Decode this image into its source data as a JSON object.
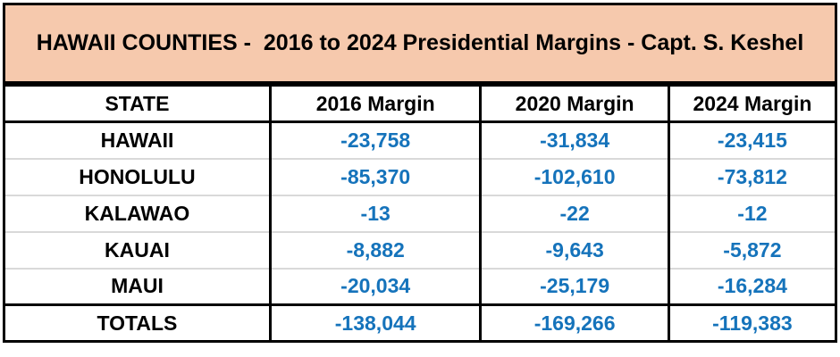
{
  "banner": {
    "title": "HAWAII COUNTIES -  2016 to 2024 Presidential Margins - Capt. S. Keshel"
  },
  "colors": {
    "banner_background": "#F6C9AD",
    "value_text": "#1573BB",
    "row_divider": "#D9D9D9",
    "border": "#000000",
    "cell_background": "#FFFFFF"
  },
  "table": {
    "headers": [
      "STATE",
      "2016 Margin",
      "2020 Margin",
      "2024 Margin"
    ],
    "rows": [
      {
        "state": "HAWAII",
        "values": [
          "-23,758",
          "-31,834",
          "-23,415"
        ]
      },
      {
        "state": "HONOLULU",
        "values": [
          "-85,370",
          "-102,610",
          "-73,812"
        ]
      },
      {
        "state": "KALAWAO",
        "values": [
          "-13",
          "-22",
          "-12"
        ]
      },
      {
        "state": "KAUAI",
        "values": [
          "-8,882",
          "-9,643",
          "-5,872"
        ]
      },
      {
        "state": "MAUI",
        "values": [
          "-20,034",
          "-25,179",
          "-16,284"
        ]
      }
    ],
    "totals": {
      "state": "TOTALS",
      "values": [
        "-138,044",
        "-169,266",
        "-119,383"
      ]
    }
  },
  "chart_data": {
    "type": "table",
    "title": "HAWAII COUNTIES - 2016 to 2024 Presidential Margins - Capt. S. Keshel",
    "columns": [
      "STATE",
      "2016 Margin",
      "2020 Margin",
      "2024 Margin"
    ],
    "rows": [
      [
        "HAWAII",
        -23758,
        -31834,
        -23415
      ],
      [
        "HONOLULU",
        -85370,
        -102610,
        -73812
      ],
      [
        "KALAWAO",
        -13,
        -22,
        -12
      ],
      [
        "KAUAI",
        -8882,
        -9643,
        -5872
      ],
      [
        "MAUI",
        -20034,
        -25179,
        -16284
      ],
      [
        "TOTALS",
        -138044,
        -169266,
        -119383
      ]
    ]
  }
}
